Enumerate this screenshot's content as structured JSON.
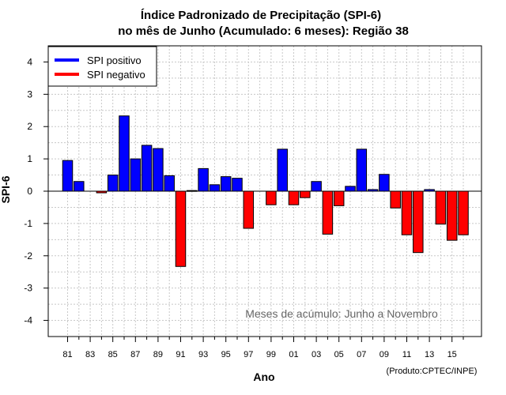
{
  "chart_data": {
    "type": "bar",
    "title": "Índice Padronizado de Precipitação (SPI-6)",
    "subtitle": "no mês de Junho (Acumulado: 6 meses): Região 38",
    "xlabel": "Ano",
    "ylabel": "SPI-6",
    "ylim": [
      -4.5,
      4.5
    ],
    "yticks": [
      -4,
      -3,
      -2,
      -1,
      0,
      1,
      2,
      3,
      4
    ],
    "xtick_labels": [
      "81",
      "83",
      "85",
      "87",
      "89",
      "91",
      "93",
      "95",
      "97",
      "99",
      "01",
      "03",
      "05",
      "07",
      "09",
      "11",
      "13",
      "15"
    ],
    "grid": true,
    "legend_position": "top-left",
    "legend": [
      {
        "label": "SPI positivo",
        "color": "#0000ff"
      },
      {
        "label": "SPI negativo",
        "color": "#ff0000"
      }
    ],
    "positive_color": "#0000ff",
    "negative_color": "#ff0000",
    "categories": [
      "1981",
      "1982",
      "1983",
      "1984",
      "1985",
      "1986",
      "1987",
      "1988",
      "1989",
      "1990",
      "1991",
      "1992",
      "1993",
      "1994",
      "1995",
      "1996",
      "1997",
      "1998",
      "1999",
      "2000",
      "2001",
      "2002",
      "2003",
      "2004",
      "2005",
      "2006",
      "2007",
      "2008",
      "2009",
      "2010",
      "2011",
      "2012",
      "2013",
      "2014",
      "2015",
      "2016"
    ],
    "values": [
      0.95,
      0.3,
      0.0,
      -0.05,
      0.5,
      2.33,
      1.0,
      1.42,
      1.32,
      0.48,
      -2.33,
      0.02,
      0.7,
      0.2,
      0.45,
      0.4,
      -1.15,
      0.0,
      -0.42,
      1.3,
      -0.42,
      -0.2,
      0.3,
      -1.33,
      -0.45,
      0.15,
      1.3,
      0.05,
      0.52,
      -0.52,
      -1.35,
      -1.9,
      0.05,
      -1.02,
      -1.52,
      -1.35
    ],
    "annotation": "Meses de acúmulo: Junho a Novembro",
    "credit": "(Produto:CPTEC/INPE)"
  }
}
